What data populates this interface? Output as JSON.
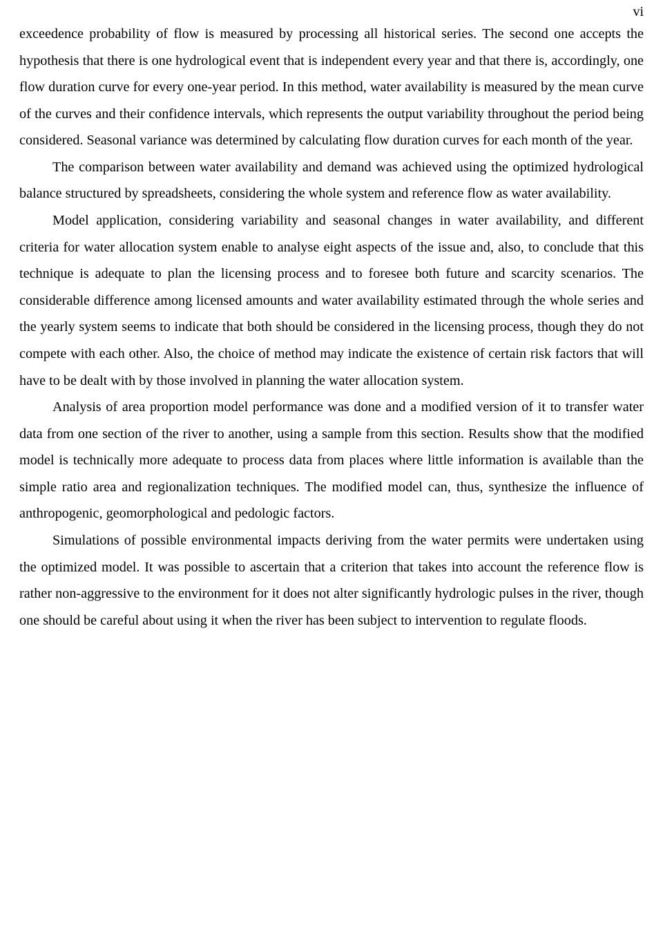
{
  "pageNumber": "vi",
  "paragraphs": {
    "p1": "exceedence probability of flow is measured by processing all historical series. The second one accepts the hypothesis that there is one hydrological event that is independent every year and that there is, accordingly, one flow duration curve for every one-year period. In this method, water availability is measured by the mean curve of the curves and their confidence intervals, which represents the output variability throughout the period being considered. Seasonal variance was determined by calculating flow duration curves for each month of the year.",
    "p2": "The comparison between water availability and demand was achieved using the optimized hydrological balance structured by spreadsheets, considering the whole system and reference flow as water availability.",
    "p3": "Model application, considering variability and seasonal changes in water availability, and different criteria for water allocation system enable to analyse eight aspects of the issue and, also, to conclude that this technique is adequate to plan the licensing process and to foresee both future and scarcity scenarios. The considerable difference among licensed amounts and water availability estimated through the whole series and the yearly system seems to indicate that both should be considered in the licensing process, though they do not compete with each other. Also, the choice of method may indicate the existence of certain risk factors that will have to be dealt with by those involved in planning the water allocation system.",
    "p4": "Analysis of area proportion model performance was done and a modified version of it to transfer water data from one section of the river to another, using a sample from this section. Results show that the modified model is technically more adequate to process data from places where little information is available than the simple ratio area and regionalization techniques. The modified model can, thus, synthesize the influence of anthropogenic, geomorphological and pedologic factors.",
    "p5": "Simulations of possible environmental impacts deriving from the water permits were undertaken using the optimized model. It was possible to ascertain that a criterion that takes into account the reference flow is rather non-aggressive to the environment for it does not alter significantly hydrologic pulses in the river, though one should be careful about using it when the river has been subject to intervention to regulate floods."
  }
}
